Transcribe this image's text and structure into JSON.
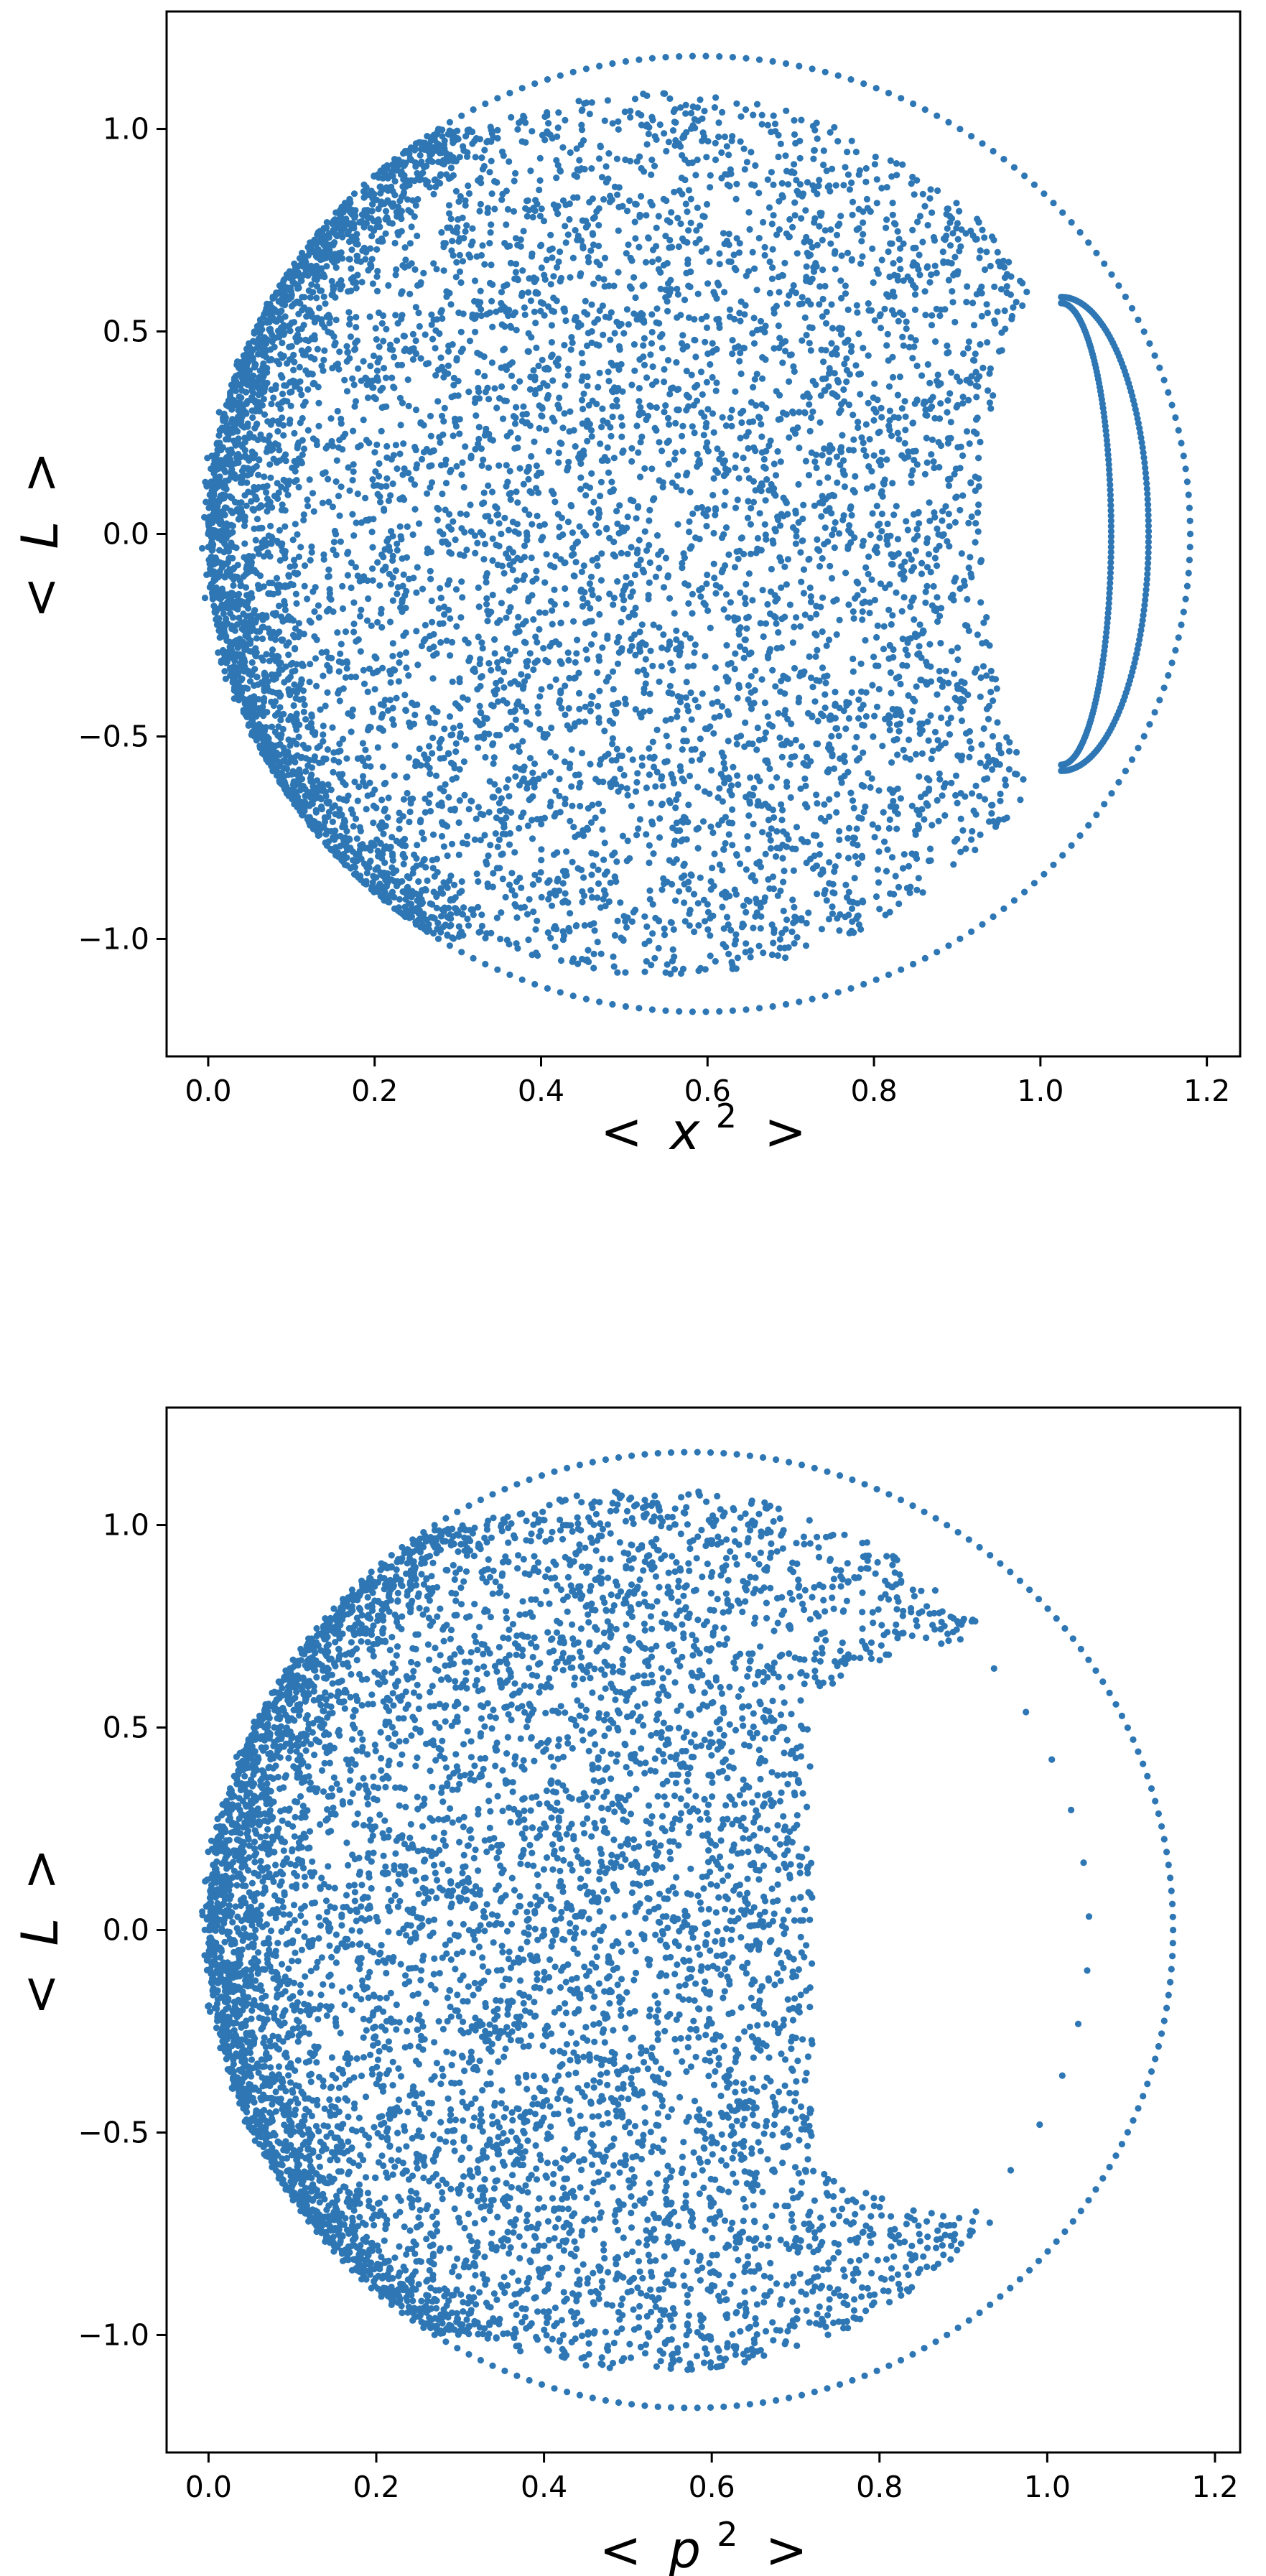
{
  "chart_data": [
    {
      "type": "scatter",
      "xlabel": "< x2 >",
      "xlabel_parts": {
        "open": "<",
        "var": "x",
        "exp": "2",
        "close": ">"
      },
      "ylabel": "< L >",
      "ylabel_parts": {
        "open": "<",
        "var": "L",
        "close": ">"
      },
      "xlim": [
        -0.05,
        1.24
      ],
      "ylim": [
        -1.29,
        1.29
      ],
      "xticks": [
        0.0,
        0.2,
        0.4,
        0.6,
        0.8,
        1.0,
        1.2
      ],
      "xtick_labels": [
        "0.0",
        "0.2",
        "0.4",
        "0.6",
        "0.8",
        "1.0",
        "1.2"
      ],
      "yticks": [
        -1.0,
        -0.5,
        0.0,
        0.5,
        1.0
      ],
      "ytick_labels": [
        "−1.0",
        "−0.5",
        "0.0",
        "0.5",
        "1.0"
      ],
      "grid": false,
      "legend": "none",
      "color": "#2e77b4",
      "series": [
        {
          "shape": "outer-ring",
          "description_points": [
            [
              0.0,
              0.0
            ],
            [
              0.3,
              0.95
            ],
            [
              0.59,
              1.18
            ],
            [
              0.9,
              0.95
            ],
            [
              1.18,
              0.0
            ],
            [
              0.9,
              -0.95
            ],
            [
              0.59,
              -1.18
            ],
            [
              0.3,
              -0.95
            ]
          ]
        },
        {
          "shape": "chaotic-sea",
          "points": [
            [
              0.02,
              0.05
            ],
            [
              0.05,
              0.42
            ],
            [
              0.1,
              -0.55
            ],
            [
              0.15,
              0.72
            ],
            [
              0.22,
              -0.81
            ],
            [
              0.3,
              0.3
            ],
            [
              0.38,
              -0.2
            ],
            [
              0.45,
              0.9
            ],
            [
              0.52,
              -0.95
            ],
            [
              0.6,
              0.55
            ],
            [
              0.68,
              -0.6
            ],
            [
              0.75,
              0.2
            ],
            [
              0.82,
              -0.35
            ],
            [
              0.88,
              0.7
            ],
            [
              0.95,
              -0.1
            ]
          ]
        },
        {
          "shape": "island",
          "points": [
            [
              1.03,
              0.58
            ],
            [
              1.1,
              0.25
            ],
            [
              1.13,
              0.0
            ],
            [
              1.1,
              -0.25
            ],
            [
              1.03,
              -0.58
            ],
            [
              1.05,
              0.3
            ],
            [
              1.07,
              0.0
            ],
            [
              1.05,
              -0.3
            ]
          ]
        }
      ]
    },
    {
      "type": "scatter",
      "xlabel": "< p2 >",
      "xlabel_parts": {
        "open": "<",
        "var": "p",
        "exp": "2",
        "close": ">"
      },
      "ylabel": "< L >",
      "ylabel_parts": {
        "open": "<",
        "var": "L",
        "close": ">"
      },
      "xlim": [
        -0.05,
        1.23
      ],
      "ylim": [
        -1.29,
        1.29
      ],
      "xticks": [
        0.0,
        0.2,
        0.4,
        0.6,
        0.8,
        1.0,
        1.2
      ],
      "xtick_labels": [
        "0.0",
        "0.2",
        "0.4",
        "0.6",
        "0.8",
        "1.0",
        "1.2"
      ],
      "yticks": [
        -1.0,
        -0.5,
        0.0,
        0.5,
        1.0
      ],
      "ytick_labels": [
        "−1.0",
        "−0.5",
        "0.0",
        "0.5",
        "1.0"
      ],
      "grid": false,
      "legend": "none",
      "color": "#2e77b4",
      "series": [
        {
          "shape": "outer-ring",
          "description_points": [
            [
              0.0,
              0.0
            ],
            [
              0.3,
              0.95
            ],
            [
              0.58,
              1.18
            ],
            [
              0.9,
              0.95
            ],
            [
              1.15,
              0.0
            ],
            [
              0.9,
              -0.95
            ],
            [
              0.58,
              -1.18
            ],
            [
              0.3,
              -0.95
            ]
          ]
        },
        {
          "shape": "chaotic-sea-with-crescent-gap",
          "points": [
            [
              0.02,
              0.0
            ],
            [
              0.06,
              0.45
            ],
            [
              0.1,
              -0.5
            ],
            [
              0.18,
              0.75
            ],
            [
              0.25,
              -0.8
            ],
            [
              0.35,
              0.2
            ],
            [
              0.42,
              -0.3
            ],
            [
              0.5,
              0.85
            ],
            [
              0.55,
              -0.9
            ],
            [
              0.65,
              0.6
            ],
            [
              0.72,
              -0.65
            ],
            [
              0.78,
              0.1
            ],
            [
              0.9,
              0.5
            ],
            [
              0.92,
              -0.5
            ],
            [
              1.0,
              0.3
            ]
          ]
        },
        {
          "shape": "outer-broken-arc",
          "points": [
            [
              0.82,
              0.98
            ],
            [
              0.93,
              0.78
            ],
            [
              1.0,
              0.5
            ],
            [
              1.04,
              0.2
            ],
            [
              1.05,
              0.0
            ],
            [
              1.04,
              -0.2
            ],
            [
              1.0,
              -0.5
            ],
            [
              0.93,
              -0.78
            ],
            [
              0.82,
              -0.98
            ]
          ]
        }
      ]
    }
  ]
}
